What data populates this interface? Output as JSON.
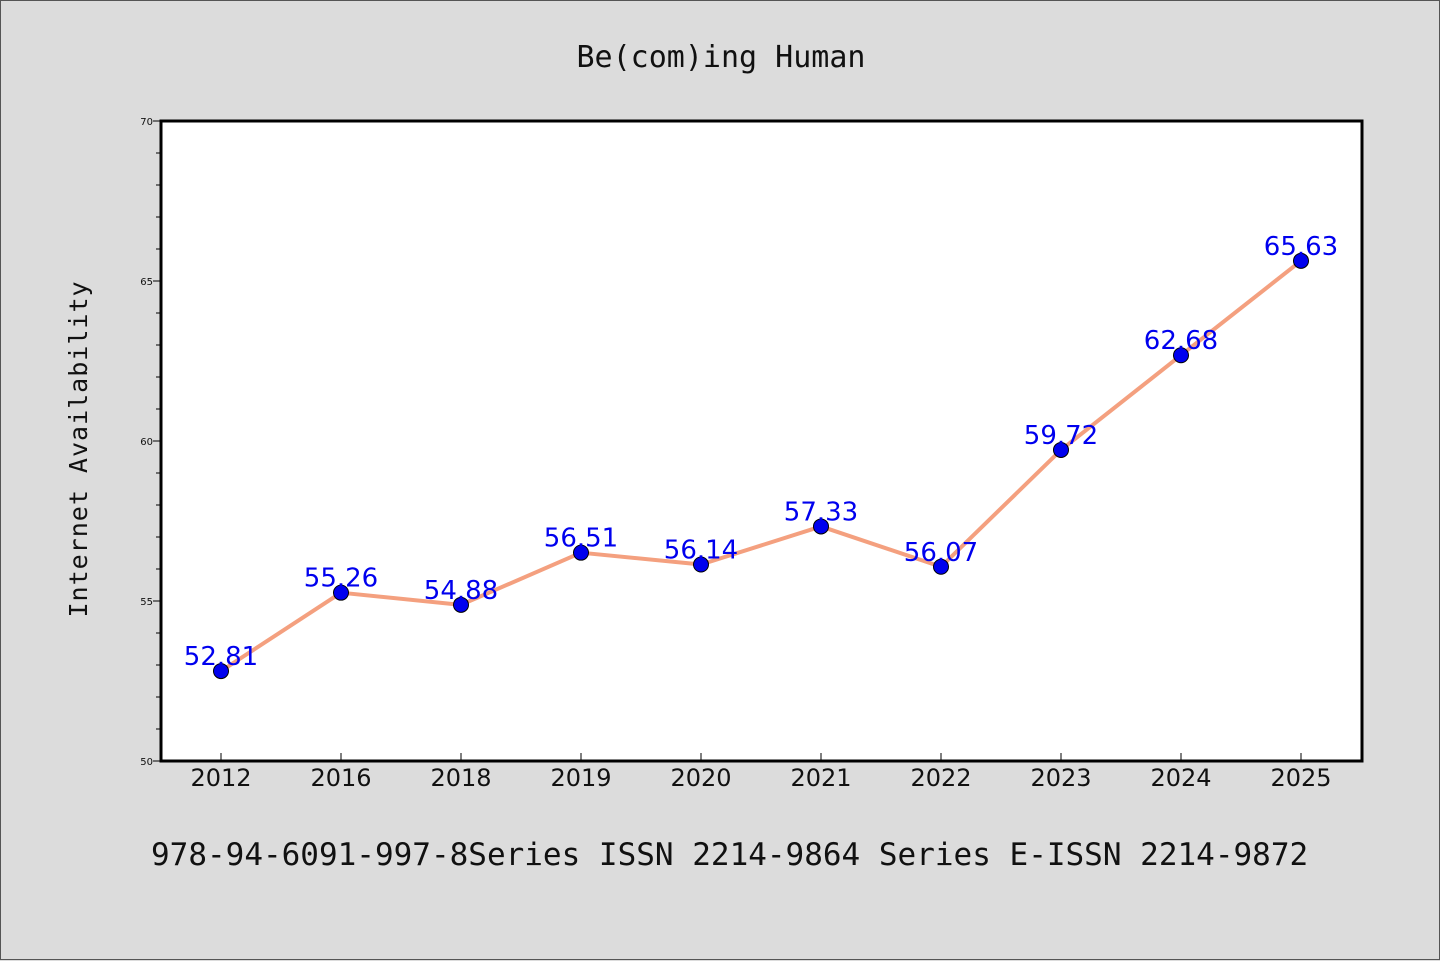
{
  "chart_data": {
    "type": "line",
    "title": "Be(com)ing Human",
    "ylabel": "Internet Availability",
    "xlabel": "",
    "footer": "978-94-6091-997-8Series ISSN 2214-9864 Series E-ISSN 2214-9872",
    "categories": [
      "2012",
      "2016",
      "2018",
      "2019",
      "2020",
      "2021",
      "2022",
      "2023",
      "2024",
      "2025"
    ],
    "values": [
      52.81,
      55.26,
      54.88,
      56.51,
      56.14,
      57.33,
      56.07,
      59.72,
      62.68,
      65.63
    ],
    "data_labels": [
      "52.81",
      "55.26",
      "54.88",
      "56.51",
      "56.14",
      "57.33",
      "56.07",
      "59.72",
      "62.68",
      "65.63"
    ],
    "ylim": [
      50,
      70
    ],
    "yticks": [
      50,
      55,
      60,
      65,
      70
    ],
    "grid": false,
    "legend": "none",
    "colors": {
      "line": "#f4a07f",
      "marker": "#0000ee",
      "label": "#0000ee",
      "background": "#dcdcdc",
      "plot_area": "#ffffff"
    }
  }
}
